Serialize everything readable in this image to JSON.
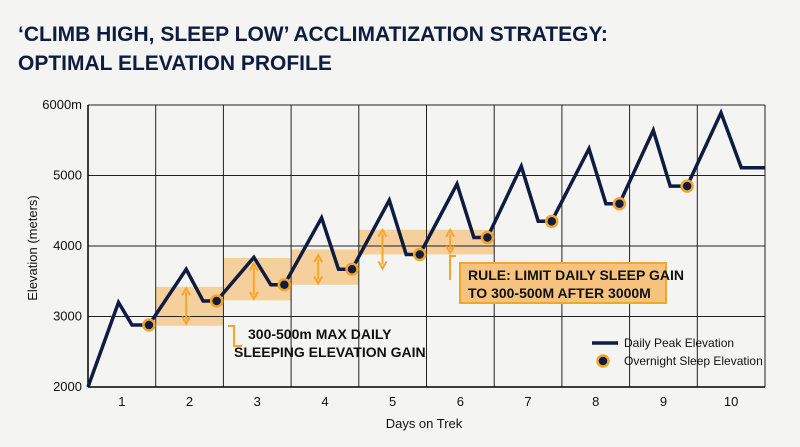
{
  "chart_data": {
    "type": "line",
    "title_lines": [
      "‘CLIMB HIGH, SLEEP LOW’ ACCLIMATIZATION STRATEGY:",
      "OPTIMAL ELEVATION PROFILE"
    ],
    "xlabel": "Days on Trek",
    "ylabel": "Elevation (meters)",
    "ylim": [
      2000,
      6000
    ],
    "yticks": [
      2000,
      3000,
      4000,
      5000,
      6000
    ],
    "ytick_labels": [
      "2000",
      "3000",
      "4000",
      "5000",
      "6000m"
    ],
    "xlim": [
      0.5,
      10.5
    ],
    "xticks": [
      1,
      2,
      3,
      4,
      5,
      6,
      7,
      8,
      9,
      10
    ],
    "grid": true,
    "series": [
      {
        "name": "Daily Peak Elevation",
        "color": "#0f1c3f",
        "points": [
          [
            0.5,
            2000
          ],
          [
            0.95,
            3200
          ],
          [
            1.15,
            2880
          ],
          [
            1.4,
            2880
          ],
          [
            1.95,
            3670
          ],
          [
            2.2,
            3220
          ],
          [
            2.4,
            3220
          ],
          [
            2.95,
            3840
          ],
          [
            3.2,
            3450
          ],
          [
            3.4,
            3450
          ],
          [
            3.95,
            4400
          ],
          [
            4.2,
            3670
          ],
          [
            4.4,
            3670
          ],
          [
            4.95,
            4650
          ],
          [
            5.2,
            3880
          ],
          [
            5.4,
            3880
          ],
          [
            5.95,
            4880
          ],
          [
            6.2,
            4120
          ],
          [
            6.4,
            4120
          ],
          [
            6.9,
            5130
          ],
          [
            7.15,
            4350
          ],
          [
            7.35,
            4350
          ],
          [
            7.9,
            5380
          ],
          [
            8.15,
            4600
          ],
          [
            8.35,
            4600
          ],
          [
            8.85,
            5640
          ],
          [
            9.1,
            4850
          ],
          [
            9.35,
            4850
          ],
          [
            9.85,
            5890
          ],
          [
            10.15,
            5110
          ],
          [
            10.5,
            5110
          ]
        ]
      },
      {
        "name": "Overnight Sleep Elevation",
        "color": "#0f1c3f",
        "marker_edge": "#f4a62a",
        "points": [
          [
            1.4,
            2880
          ],
          [
            2.4,
            3220
          ],
          [
            3.4,
            3450
          ],
          [
            4.4,
            3670
          ],
          [
            5.4,
            3880
          ],
          [
            6.4,
            4120
          ],
          [
            7.35,
            4350
          ],
          [
            8.35,
            4600
          ],
          [
            9.35,
            4850
          ]
        ]
      }
    ],
    "bands": [
      {
        "x0": 1.5,
        "x1": 2.5,
        "y0": 2870,
        "y1": 3420
      },
      {
        "x0": 2.5,
        "x1": 3.5,
        "y0": 3230,
        "y1": 3830
      },
      {
        "x0": 3.5,
        "x1": 4.5,
        "y0": 3450,
        "y1": 3950
      },
      {
        "x0": 4.5,
        "x1": 5.5,
        "y0": 3880,
        "y1": 4230
      },
      {
        "x0": 5.5,
        "x1": 6.5,
        "y0": 3880,
        "y1": 4230
      }
    ],
    "arrows": [
      {
        "x": 1.95,
        "y0": 2900,
        "y1": 3400
      },
      {
        "x": 2.95,
        "y0": 3250,
        "y1": 3750
      },
      {
        "x": 3.9,
        "y0": 3470,
        "y1": 3870
      },
      {
        "x": 4.85,
        "y0": 3680,
        "y1": 4230
      },
      {
        "x": 5.85,
        "y0": 3900,
        "y1": 4230
      }
    ],
    "annotations": [
      {
        "lines": [
          "300-500m MAX DAILY",
          "SLEEPING ELEVATION GAIN"
        ],
        "boxed": false
      },
      {
        "lines": [
          "RULE: LIMIT DAILY SLEEP GAIN",
          "TO 300-500M AFTER 3000M"
        ],
        "boxed": true
      }
    ],
    "legend": {
      "placement": "bottom-right"
    },
    "colors": {
      "band": "#f6c37f",
      "accent": "#f4a62a",
      "line": "#0f1c3f",
      "grid": "#222222"
    }
  }
}
